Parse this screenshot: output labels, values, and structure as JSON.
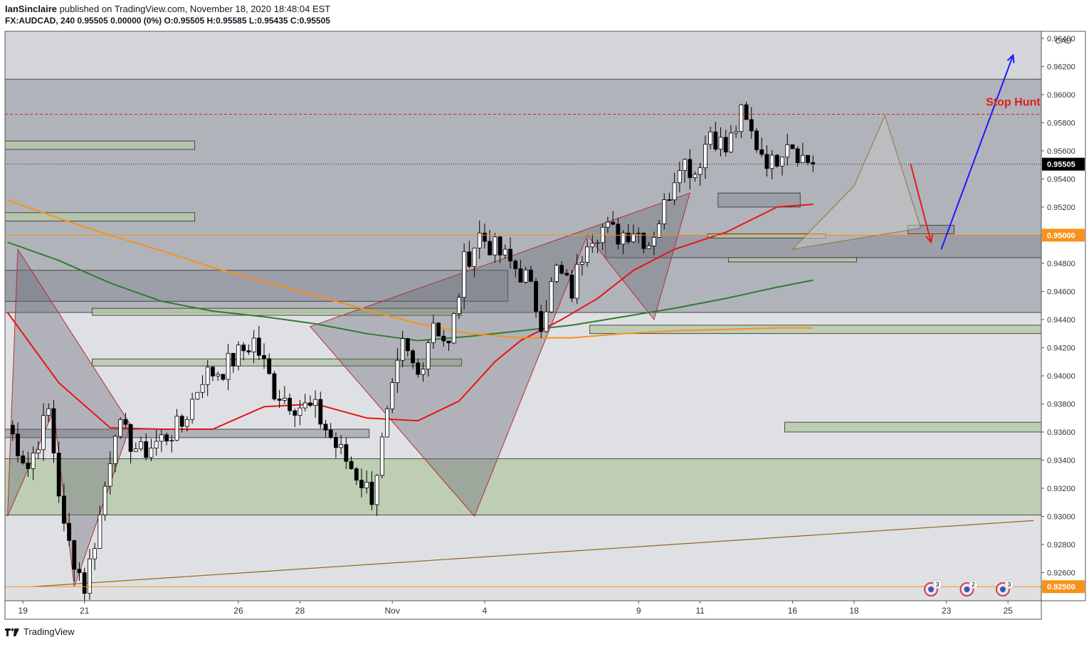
{
  "header": {
    "author": "IanSinclaire",
    "published_text": "published on TradingView.com, November 18, 2020 18:48:04 EST",
    "symbol": "FX:AUDCAD, 240",
    "ohlc_text": "0.95505 0.00000 (0%) O:0.95505 H:0.95585 L:0.95435 C:0.95505"
  },
  "footer": {
    "brand": "TradingView"
  },
  "colors": {
    "background_top": "#d4d5da",
    "supply_zone": "#8a8e97",
    "demand_zone": "#b5c9a9",
    "candle_up": "#ffffff",
    "candle_down": "#000000",
    "ema_red": "#e51515",
    "ema_green": "#2e7d32",
    "ema_orange": "#f7931a",
    "arrow_up": "#1a1aff",
    "arrow_down": "#e01e1e",
    "stop_hunt": "#e01e1e"
  },
  "chart_data": {
    "type": "candlestick",
    "title": "",
    "y_axis": {
      "currency": "CAD",
      "ylim": [
        0.924,
        0.9645
      ],
      "ticks": [
        "0.96400",
        "0.96200",
        "0.96000",
        "0.95800",
        "0.95600",
        "0.95400",
        "0.95200",
        "0.95000",
        "0.94800",
        "0.94600",
        "0.94400",
        "0.94200",
        "0.94000",
        "0.93800",
        "0.93600",
        "0.93400",
        "0.93200",
        "0.93000",
        "0.92800",
        "0.92600",
        "0.92500"
      ],
      "price_labels": [
        {
          "text": "0.95505",
          "value": 0.95505,
          "style": "current"
        },
        {
          "text": "0.95000",
          "value": 0.95,
          "style": "orange"
        },
        {
          "text": "0.92500",
          "value": 0.925,
          "style": "orange"
        }
      ]
    },
    "x_axis": {
      "labels": [
        {
          "text": "19",
          "bar": 3
        },
        {
          "text": "21",
          "bar": 15
        },
        {
          "text": "26",
          "bar": 45
        },
        {
          "text": "28",
          "bar": 57
        },
        {
          "text": "Nov",
          "bar": 75
        },
        {
          "text": "4",
          "bar": 93
        },
        {
          "text": "9",
          "bar": 123
        },
        {
          "text": "11",
          "bar": 135
        },
        {
          "text": "16",
          "bar": 153
        },
        {
          "text": "18",
          "bar": 165
        },
        {
          "text": "23",
          "bar": 183
        },
        {
          "text": "25",
          "bar": 195
        }
      ],
      "bars_total": 202
    },
    "anchors": [
      {
        "bar": 0,
        "price": 0.9365
      },
      {
        "bar": 4,
        "price": 0.9335
      },
      {
        "bar": 8,
        "price": 0.9375
      },
      {
        "bar": 11,
        "price": 0.929
      },
      {
        "bar": 15,
        "price": 0.925
      },
      {
        "bar": 18,
        "price": 0.93
      },
      {
        "bar": 21,
        "price": 0.9365
      },
      {
        "bar": 26,
        "price": 0.9345
      },
      {
        "bar": 30,
        "price": 0.9355
      },
      {
        "bar": 34,
        "price": 0.9365
      },
      {
        "bar": 38,
        "price": 0.94
      },
      {
        "bar": 42,
        "price": 0.9405
      },
      {
        "bar": 48,
        "price": 0.9425
      },
      {
        "bar": 52,
        "price": 0.939
      },
      {
        "bar": 56,
        "price": 0.938
      },
      {
        "bar": 60,
        "price": 0.9375
      },
      {
        "bar": 64,
        "price": 0.935
      },
      {
        "bar": 68,
        "price": 0.933
      },
      {
        "bar": 71,
        "price": 0.9315
      },
      {
        "bar": 74,
        "price": 0.937
      },
      {
        "bar": 77,
        "price": 0.942
      },
      {
        "bar": 80,
        "price": 0.94
      },
      {
        "bar": 83,
        "price": 0.944
      },
      {
        "bar": 86,
        "price": 0.942
      },
      {
        "bar": 89,
        "price": 0.948
      },
      {
        "bar": 92,
        "price": 0.95
      },
      {
        "bar": 95,
        "price": 0.949
      },
      {
        "bar": 98,
        "price": 0.948
      },
      {
        "bar": 101,
        "price": 0.947
      },
      {
        "bar": 104,
        "price": 0.944
      },
      {
        "bar": 107,
        "price": 0.9475
      },
      {
        "bar": 110,
        "price": 0.946
      },
      {
        "bar": 113,
        "price": 0.95
      },
      {
        "bar": 116,
        "price": 0.9505
      },
      {
        "bar": 119,
        "price": 0.95
      },
      {
        "bar": 122,
        "price": 0.9505
      },
      {
        "bar": 125,
        "price": 0.9495
      },
      {
        "bar": 128,
        "price": 0.952
      },
      {
        "bar": 131,
        "price": 0.9555
      },
      {
        "bar": 134,
        "price": 0.9545
      },
      {
        "bar": 137,
        "price": 0.9575
      },
      {
        "bar": 140,
        "price": 0.956
      },
      {
        "bar": 143,
        "price": 0.9585
      },
      {
        "bar": 146,
        "price": 0.9565
      },
      {
        "bar": 149,
        "price": 0.955
      },
      {
        "bar": 152,
        "price": 0.957
      },
      {
        "bar": 155,
        "price": 0.9555
      },
      {
        "bar": 157,
        "price": 0.95505
      }
    ],
    "moving_averages": [
      {
        "color": "#e51515",
        "points": [
          [
            0,
            0.9445
          ],
          [
            10,
            0.9395
          ],
          [
            20,
            0.9363
          ],
          [
            30,
            0.9362
          ],
          [
            40,
            0.9362
          ],
          [
            50,
            0.9378
          ],
          [
            60,
            0.938
          ],
          [
            70,
            0.937
          ],
          [
            80,
            0.9368
          ],
          [
            88,
            0.9382
          ],
          [
            95,
            0.941
          ],
          [
            100,
            0.9425
          ],
          [
            108,
            0.944
          ],
          [
            115,
            0.9455
          ],
          [
            122,
            0.9475
          ],
          [
            130,
            0.949
          ],
          [
            140,
            0.9502
          ],
          [
            150,
            0.952
          ],
          [
            157,
            0.9522
          ]
        ]
      },
      {
        "color": "#2e7d32",
        "points": [
          [
            0,
            0.9495
          ],
          [
            10,
            0.9482
          ],
          [
            20,
            0.9466
          ],
          [
            30,
            0.9453
          ],
          [
            40,
            0.9446
          ],
          [
            50,
            0.9442
          ],
          [
            60,
            0.9437
          ],
          [
            70,
            0.943
          ],
          [
            80,
            0.9425
          ],
          [
            90,
            0.9428
          ],
          [
            100,
            0.9432
          ],
          [
            110,
            0.9436
          ],
          [
            120,
            0.9442
          ],
          [
            130,
            0.9448
          ],
          [
            140,
            0.9455
          ],
          [
            150,
            0.9463
          ],
          [
            157,
            0.9468
          ]
        ]
      },
      {
        "color": "#f7931a",
        "points": [
          [
            0,
            0.9525
          ],
          [
            10,
            0.9512
          ],
          [
            20,
            0.95
          ],
          [
            30,
            0.9489
          ],
          [
            40,
            0.9477
          ],
          [
            50,
            0.9467
          ],
          [
            60,
            0.9457
          ],
          [
            70,
            0.9447
          ],
          [
            80,
            0.9437
          ],
          [
            90,
            0.943
          ],
          [
            100,
            0.9427
          ],
          [
            110,
            0.9427
          ],
          [
            120,
            0.943
          ],
          [
            130,
            0.9432
          ],
          [
            140,
            0.9433
          ],
          [
            150,
            0.9434
          ],
          [
            157,
            0.9434
          ]
        ]
      }
    ],
    "zones": [
      {
        "kind": "supply",
        "price_top": 0.9611,
        "price_bottom": 0.9445,
        "bar_start": 0,
        "bar_end": 202
      },
      {
        "kind": "supply",
        "price_top": 0.95,
        "price_bottom": 0.9484,
        "bar_start": 117,
        "bar_end": 202
      },
      {
        "kind": "supply",
        "price_top": 0.9475,
        "price_bottom": 0.9453,
        "bar_start": 0,
        "bar_end": 98
      },
      {
        "kind": "supply",
        "price_top": 0.953,
        "price_bottom": 0.952,
        "bar_start": 139,
        "bar_end": 155
      },
      {
        "kind": "supply",
        "price_top": 0.9507,
        "price_bottom": 0.9501,
        "bar_start": 176,
        "bar_end": 185
      },
      {
        "kind": "supply",
        "price_top": 0.9362,
        "price_bottom": 0.9356,
        "bar_start": 0,
        "bar_end": 71
      },
      {
        "kind": "demand",
        "price_top": 0.9341,
        "price_bottom": 0.9301,
        "bar_start": 0,
        "bar_end": 202
      },
      {
        "kind": "demand",
        "price_top": 0.9567,
        "price_bottom": 0.9561,
        "bar_start": 0,
        "bar_end": 37
      },
      {
        "kind": "demand",
        "price_top": 0.9516,
        "price_bottom": 0.951,
        "bar_start": 0,
        "bar_end": 37
      },
      {
        "kind": "demand",
        "price_top": 0.9448,
        "price_bottom": 0.9443,
        "bar_start": 17,
        "bar_end": 89
      },
      {
        "kind": "demand",
        "price_top": 0.9412,
        "price_bottom": 0.9407,
        "bar_start": 17,
        "bar_end": 89
      },
      {
        "kind": "demand",
        "price_top": 0.9436,
        "price_bottom": 0.943,
        "bar_start": 114,
        "bar_end": 202
      },
      {
        "kind": "demand",
        "price_top": 0.9367,
        "price_bottom": 0.936,
        "bar_start": 152,
        "bar_end": 202
      },
      {
        "kind": "demand",
        "price_top": 0.9484,
        "price_bottom": 0.9481,
        "bar_start": 141,
        "bar_end": 166
      },
      {
        "kind": "demand",
        "price_top": 0.9501,
        "price_bottom": 0.9498,
        "bar_start": 137,
        "bar_end": 160
      }
    ],
    "harmonic_patterns": [
      {
        "color": "#6b6e77",
        "points": [
          [
            0,
            0.93
          ],
          [
            9,
            0.9375
          ],
          [
            13,
            0.925
          ],
          [
            24,
            0.9365
          ],
          [
            2,
            0.949
          ]
        ]
      },
      {
        "color": "#6b6e77",
        "points": [
          [
            59,
            0.9435
          ],
          [
            91,
            0.93
          ],
          [
            113,
            0.95
          ],
          [
            126,
            0.944
          ],
          [
            133,
            0.953
          ]
        ]
      },
      {
        "color": "#c4c4c4",
        "points": [
          [
            153,
            0.949
          ],
          [
            165,
            0.9535
          ],
          [
            171,
            0.9585
          ],
          [
            178,
            0.9505
          ]
        ]
      }
    ],
    "trendline": {
      "color": "#8b6914",
      "points": [
        [
          5,
          0.925
        ],
        [
          200,
          0.9297
        ]
      ]
    },
    "levels": [
      {
        "value": 0.9586,
        "color": "#e01e1e",
        "style": "dashed"
      },
      {
        "value": 0.95505,
        "color": "#333333",
        "style": "dotted"
      },
      {
        "value": 0.95,
        "color": "#f7931a",
        "style": "solid"
      },
      {
        "value": 0.925,
        "color": "#f7931a",
        "style": "solid"
      }
    ],
    "annotations": [
      {
        "text": "Stop Hunt",
        "color": "#e01e1e",
        "bar": 196,
        "price": 0.9592
      }
    ],
    "arrows": [
      {
        "color": "#e01e1e",
        "from": [
          176,
          0.9551
        ],
        "to": [
          180,
          0.9495
        ]
      },
      {
        "color": "#1a1aff",
        "from": [
          182,
          0.949
        ],
        "to": [
          196,
          0.9628
        ]
      }
    ],
    "events": [
      {
        "bar": 180,
        "count": "3"
      },
      {
        "bar": 187,
        "count": "2"
      },
      {
        "bar": 194,
        "count": "3"
      }
    ]
  }
}
